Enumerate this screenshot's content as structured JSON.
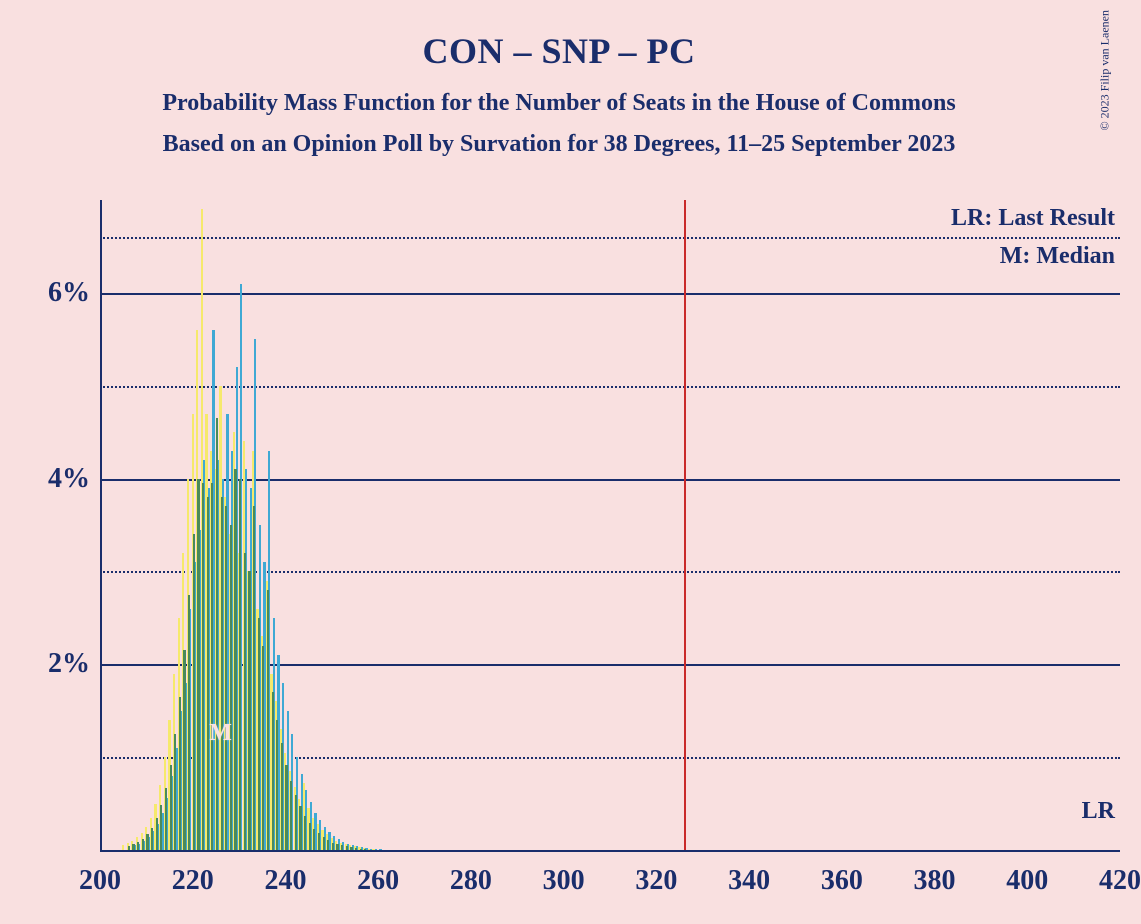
{
  "title": "CON – SNP – PC",
  "subtitle1": "Probability Mass Function for the Number of Seats in the House of Commons",
  "subtitle2": "Based on an Opinion Poll by Survation for 38 Degrees, 11–25 September 2023",
  "copyright": "© 2023 Filip van Laenen",
  "legend": {
    "lr": "LR: Last Result",
    "m": "M: Median"
  },
  "lr_label": "LR",
  "median_label": "M",
  "chart": {
    "type": "bar",
    "xlim": [
      200,
      420
    ],
    "ylim": [
      0,
      7
    ],
    "x_ticks": [
      200,
      220,
      240,
      260,
      280,
      300,
      320,
      340,
      360,
      380,
      400,
      420
    ],
    "y_ticks_labeled": [
      2,
      4,
      6
    ],
    "y_ticks_minor": [
      1,
      3,
      5,
      6.6
    ],
    "vline_x": 326,
    "vline_color": "#c92a2a",
    "median_x": 226,
    "background_color": "#f9e0e0",
    "axis_color": "#1a2d6b",
    "series": [
      {
        "name": "yellow",
        "color": "#f6e96b",
        "values": [
          {
            "x": 205,
            "y": 0.05
          },
          {
            "x": 206,
            "y": 0.08
          },
          {
            "x": 207,
            "y": 0.1
          },
          {
            "x": 208,
            "y": 0.14
          },
          {
            "x": 209,
            "y": 0.18
          },
          {
            "x": 210,
            "y": 0.25
          },
          {
            "x": 211,
            "y": 0.35
          },
          {
            "x": 212,
            "y": 0.5
          },
          {
            "x": 213,
            "y": 0.7
          },
          {
            "x": 214,
            "y": 1.0
          },
          {
            "x": 215,
            "y": 1.4
          },
          {
            "x": 216,
            "y": 1.9
          },
          {
            "x": 217,
            "y": 2.5
          },
          {
            "x": 218,
            "y": 3.2
          },
          {
            "x": 219,
            "y": 4.0
          },
          {
            "x": 220,
            "y": 4.7
          },
          {
            "x": 221,
            "y": 5.6
          },
          {
            "x": 222,
            "y": 6.9
          },
          {
            "x": 223,
            "y": 4.7
          },
          {
            "x": 224,
            "y": 4.3
          },
          {
            "x": 225,
            "y": 4.1
          },
          {
            "x": 226,
            "y": 5.0
          },
          {
            "x": 227,
            "y": 3.8
          },
          {
            "x": 228,
            "y": 3.4
          },
          {
            "x": 229,
            "y": 4.5
          },
          {
            "x": 230,
            "y": 3.2
          },
          {
            "x": 231,
            "y": 4.4
          },
          {
            "x": 232,
            "y": 3.0
          },
          {
            "x": 233,
            "y": 4.3
          },
          {
            "x": 234,
            "y": 2.6
          },
          {
            "x": 235,
            "y": 2.3
          },
          {
            "x": 236,
            "y": 2.9
          },
          {
            "x": 237,
            "y": 1.9
          },
          {
            "x": 238,
            "y": 1.6
          },
          {
            "x": 239,
            "y": 1.3
          },
          {
            "x": 240,
            "y": 1.05
          },
          {
            "x": 241,
            "y": 0.85
          },
          {
            "x": 242,
            "y": 0.68
          },
          {
            "x": 243,
            "y": 0.55
          },
          {
            "x": 244,
            "y": 0.72
          },
          {
            "x": 245,
            "y": 0.45
          },
          {
            "x": 246,
            "y": 0.35
          },
          {
            "x": 247,
            "y": 0.28
          },
          {
            "x": 248,
            "y": 0.22
          },
          {
            "x": 249,
            "y": 0.17
          },
          {
            "x": 250,
            "y": 0.13
          },
          {
            "x": 251,
            "y": 0.1
          },
          {
            "x": 252,
            "y": 0.08
          },
          {
            "x": 253,
            "y": 0.06
          },
          {
            "x": 254,
            "y": 0.05
          },
          {
            "x": 255,
            "y": 0.04
          },
          {
            "x": 256,
            "y": 0.03
          },
          {
            "x": 257,
            "y": 0.02
          },
          {
            "x": 258,
            "y": 0.015
          },
          {
            "x": 259,
            "y": 0.01
          }
        ]
      },
      {
        "name": "blue",
        "color": "#3fa9d4",
        "values": [
          {
            "x": 207,
            "y": 0.05
          },
          {
            "x": 208,
            "y": 0.07
          },
          {
            "x": 209,
            "y": 0.1
          },
          {
            "x": 210,
            "y": 0.14
          },
          {
            "x": 211,
            "y": 0.2
          },
          {
            "x": 212,
            "y": 0.28
          },
          {
            "x": 213,
            "y": 0.4
          },
          {
            "x": 214,
            "y": 0.56
          },
          {
            "x": 215,
            "y": 0.8
          },
          {
            "x": 216,
            "y": 1.1
          },
          {
            "x": 217,
            "y": 1.5
          },
          {
            "x": 218,
            "y": 1.8
          },
          {
            "x": 219,
            "y": 2.6
          },
          {
            "x": 220,
            "y": 3.1
          },
          {
            "x": 221,
            "y": 3.45
          },
          {
            "x": 222,
            "y": 4.2
          },
          {
            "x": 223,
            "y": 3.9
          },
          {
            "x": 224,
            "y": 5.6
          },
          {
            "x": 225,
            "y": 4.2
          },
          {
            "x": 226,
            "y": 4.0
          },
          {
            "x": 227,
            "y": 4.7
          },
          {
            "x": 228,
            "y": 4.3
          },
          {
            "x": 229,
            "y": 5.2
          },
          {
            "x": 230,
            "y": 6.1
          },
          {
            "x": 231,
            "y": 4.1
          },
          {
            "x": 232,
            "y": 3.9
          },
          {
            "x": 233,
            "y": 5.5
          },
          {
            "x": 234,
            "y": 3.5
          },
          {
            "x": 235,
            "y": 3.1
          },
          {
            "x": 236,
            "y": 4.3
          },
          {
            "x": 237,
            "y": 2.5
          },
          {
            "x": 238,
            "y": 2.1
          },
          {
            "x": 239,
            "y": 1.8
          },
          {
            "x": 240,
            "y": 1.5
          },
          {
            "x": 241,
            "y": 1.25
          },
          {
            "x": 242,
            "y": 1.0
          },
          {
            "x": 243,
            "y": 0.82
          },
          {
            "x": 244,
            "y": 0.65
          },
          {
            "x": 245,
            "y": 0.52
          },
          {
            "x": 246,
            "y": 0.4
          },
          {
            "x": 247,
            "y": 0.32
          },
          {
            "x": 248,
            "y": 0.25
          },
          {
            "x": 249,
            "y": 0.19
          },
          {
            "x": 250,
            "y": 0.15
          },
          {
            "x": 251,
            "y": 0.12
          },
          {
            "x": 252,
            "y": 0.09
          },
          {
            "x": 253,
            "y": 0.07
          },
          {
            "x": 254,
            "y": 0.05
          },
          {
            "x": 255,
            "y": 0.04
          },
          {
            "x": 256,
            "y": 0.03
          },
          {
            "x": 257,
            "y": 0.02
          },
          {
            "x": 258,
            "y": 0.015
          },
          {
            "x": 259,
            "y": 0.01
          },
          {
            "x": 260,
            "y": 0.01
          }
        ]
      },
      {
        "name": "green",
        "color": "#4a8a5a",
        "values": [
          {
            "x": 206,
            "y": 0.04
          },
          {
            "x": 207,
            "y": 0.06
          },
          {
            "x": 208,
            "y": 0.09
          },
          {
            "x": 209,
            "y": 0.12
          },
          {
            "x": 210,
            "y": 0.17
          },
          {
            "x": 211,
            "y": 0.24
          },
          {
            "x": 212,
            "y": 0.34
          },
          {
            "x": 213,
            "y": 0.48
          },
          {
            "x": 214,
            "y": 0.67
          },
          {
            "x": 215,
            "y": 0.92
          },
          {
            "x": 216,
            "y": 1.25
          },
          {
            "x": 217,
            "y": 1.65
          },
          {
            "x": 218,
            "y": 2.15
          },
          {
            "x": 219,
            "y": 2.75
          },
          {
            "x": 220,
            "y": 3.4
          },
          {
            "x": 221,
            "y": 4.0
          },
          {
            "x": 222,
            "y": 3.95
          },
          {
            "x": 223,
            "y": 3.8
          },
          {
            "x": 224,
            "y": 3.95
          },
          {
            "x": 225,
            "y": 4.65
          },
          {
            "x": 226,
            "y": 3.8
          },
          {
            "x": 227,
            "y": 3.7
          },
          {
            "x": 228,
            "y": 3.5
          },
          {
            "x": 229,
            "y": 4.1
          },
          {
            "x": 230,
            "y": 4.0
          },
          {
            "x": 231,
            "y": 3.2
          },
          {
            "x": 232,
            "y": 3.0
          },
          {
            "x": 233,
            "y": 3.7
          },
          {
            "x": 234,
            "y": 2.5
          },
          {
            "x": 235,
            "y": 2.2
          },
          {
            "x": 236,
            "y": 2.8
          },
          {
            "x": 237,
            "y": 1.7
          },
          {
            "x": 238,
            "y": 1.4
          },
          {
            "x": 239,
            "y": 1.15
          },
          {
            "x": 240,
            "y": 0.92
          },
          {
            "x": 241,
            "y": 0.74
          },
          {
            "x": 242,
            "y": 0.59
          },
          {
            "x": 243,
            "y": 0.47
          },
          {
            "x": 244,
            "y": 0.37
          },
          {
            "x": 245,
            "y": 0.29
          },
          {
            "x": 246,
            "y": 0.23
          },
          {
            "x": 247,
            "y": 0.18
          },
          {
            "x": 248,
            "y": 0.14
          },
          {
            "x": 249,
            "y": 0.11
          },
          {
            "x": 250,
            "y": 0.08
          },
          {
            "x": 251,
            "y": 0.06
          },
          {
            "x": 252,
            "y": 0.05
          },
          {
            "x": 253,
            "y": 0.04
          },
          {
            "x": 254,
            "y": 0.03
          },
          {
            "x": 255,
            "y": 0.02
          },
          {
            "x": 256,
            "y": 0.015
          },
          {
            "x": 257,
            "y": 0.01
          }
        ]
      }
    ]
  }
}
